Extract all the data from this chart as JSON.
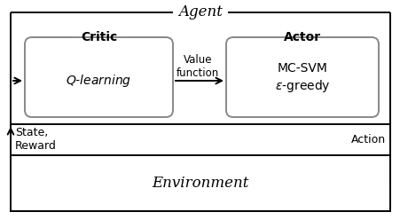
{
  "bg_color": "#ffffff",
  "text_color": "#000000",
  "border_color": "#000000",
  "gray_color": "#888888",
  "agent_label": "Agent",
  "critic_label": "Critic",
  "actor_label": "Actor",
  "q_learning_label": "$Q$-learning",
  "mc_svm_label": "MC-SVM",
  "epsilon_greedy_label": "$\\epsilon$-greedy",
  "value_function_label": "Value\nfunction",
  "environment_label": "Environment",
  "state_reward_label": "State,\nReward",
  "action_label": "Action",
  "fig_width": 4.52,
  "fig_height": 2.48,
  "dpi": 100,
  "lw": 1.4
}
